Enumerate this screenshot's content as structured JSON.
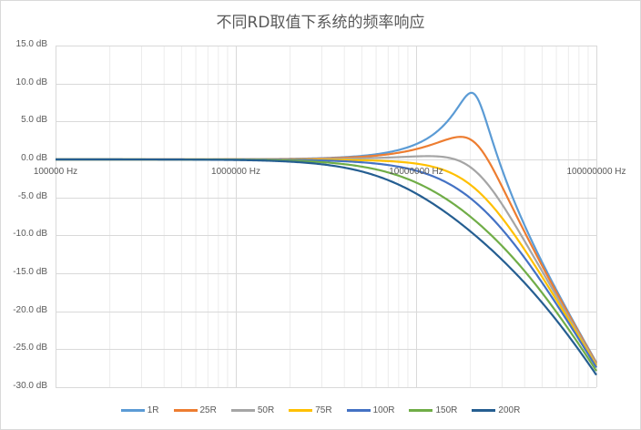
{
  "chart_data": {
    "type": "line",
    "title": "不同RD取值下系统的频率响应",
    "xlabel": "",
    "ylabel": "",
    "x_scale": "log",
    "xlim": [
      100000,
      100000000
    ],
    "ylim": [
      -30,
      15
    ],
    "grid": true,
    "legend_position": "bottom",
    "y_ticks": [
      "15.0 dB",
      "10.0 dB",
      "5.0 dB",
      "0.0 dB",
      "-5.0 dB",
      "-10.0 dB",
      "-15.0 dB",
      "-20.0 dB",
      "-25.0 dB",
      "-30.0 dB"
    ],
    "y_tick_values": [
      15,
      10,
      5,
      0,
      -5,
      -10,
      -15,
      -20,
      -25,
      -30
    ],
    "x_ticks": [
      "100000 Hz",
      "1000000 Hz",
      "10000000 Hz",
      "100000000 Hz"
    ],
    "x_tick_values": [
      100000,
      1000000,
      10000000,
      100000000
    ],
    "model": {
      "form": "second-order lowpass",
      "f0_hz": 21000000
    },
    "x": [
      100000,
      1000000,
      5000000,
      10000000,
      15000000,
      21000000,
      30000000,
      50000000,
      100000000
    ],
    "series": [
      {
        "name": "1R",
        "color": "#5b9bd5",
        "q": 2.7,
        "values": [
          0.0,
          0.0,
          0.4,
          1.6,
          4.2,
          8.6,
          1.5,
          -12.0,
          -25.6
        ]
      },
      {
        "name": "25R",
        "color": "#ed7d31",
        "q": 1.3,
        "values": [
          0.0,
          0.0,
          0.3,
          1.2,
          2.5,
          2.3,
          -2.0,
          -12.6,
          -25.7
        ]
      },
      {
        "name": "50R",
        "color": "#a5a5a5",
        "q": 0.85,
        "values": [
          0.0,
          0.0,
          0.2,
          0.5,
          0.7,
          -1.4,
          -5.6,
          -13.8,
          -25.9
        ]
      },
      {
        "name": "75R",
        "color": "#ffc000",
        "q": 0.65,
        "values": [
          0.0,
          0.0,
          0.0,
          -0.3,
          -1.1,
          -3.7,
          -7.8,
          -15.0,
          -26.2
        ]
      },
      {
        "name": "100R",
        "color": "#4472c4",
        "q": 0.53,
        "values": [
          0.0,
          0.0,
          -0.2,
          -1.2,
          -2.8,
          -5.5,
          -9.5,
          -16.0,
          -26.5
        ]
      },
      {
        "name": "150R",
        "color": "#70ad47",
        "q": 0.4,
        "values": [
          0.0,
          0.0,
          -0.5,
          -2.6,
          -4.9,
          -8.0,
          -11.8,
          -17.7,
          -27.0
        ]
      },
      {
        "name": "200R",
        "color": "#255e91",
        "q": 0.32,
        "values": [
          0.0,
          -0.1,
          -1.1,
          -3.9,
          -6.8,
          -9.9,
          -13.5,
          -19.0,
          -27.5
        ]
      }
    ]
  }
}
